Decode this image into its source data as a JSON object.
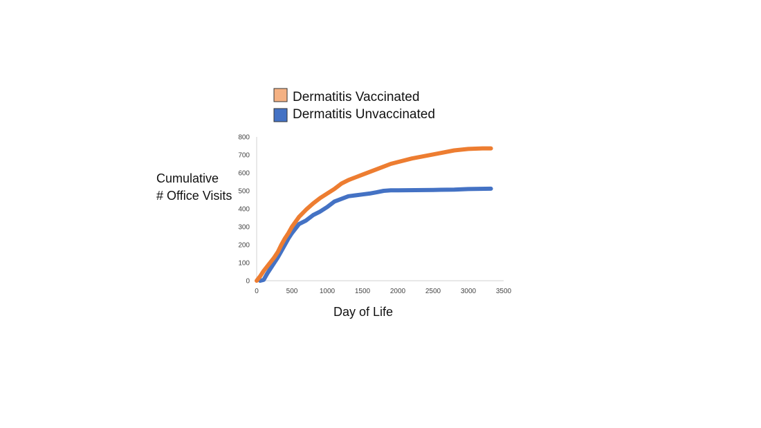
{
  "chart_data": {
    "type": "line",
    "xlabel": "Day of Life",
    "ylabel_lines": [
      "Cumulative",
      "# Office Visits"
    ],
    "xlim": [
      0,
      3500
    ],
    "ylim": [
      0,
      800
    ],
    "x_ticks": [
      0,
      500,
      1000,
      1500,
      2000,
      2500,
      3000,
      3500
    ],
    "y_ticks": [
      0,
      100,
      200,
      300,
      400,
      500,
      600,
      700,
      800
    ],
    "grid": false,
    "legend_position": "top",
    "series": [
      {
        "name": "Dermatitis Vaccinated",
        "color": "#ED7D31",
        "legend_color": "#F4B183",
        "points": [
          [
            0,
            0
          ],
          [
            50,
            25
          ],
          [
            100,
            55
          ],
          [
            150,
            80
          ],
          [
            200,
            105
          ],
          [
            250,
            130
          ],
          [
            300,
            160
          ],
          [
            350,
            200
          ],
          [
            400,
            235
          ],
          [
            450,
            265
          ],
          [
            500,
            300
          ],
          [
            600,
            355
          ],
          [
            700,
            395
          ],
          [
            800,
            430
          ],
          [
            900,
            460
          ],
          [
            1000,
            485
          ],
          [
            1100,
            510
          ],
          [
            1200,
            540
          ],
          [
            1300,
            560
          ],
          [
            1400,
            575
          ],
          [
            1500,
            590
          ],
          [
            1600,
            605
          ],
          [
            1700,
            620
          ],
          [
            1800,
            635
          ],
          [
            1900,
            650
          ],
          [
            2000,
            660
          ],
          [
            2200,
            680
          ],
          [
            2400,
            695
          ],
          [
            2600,
            710
          ],
          [
            2800,
            725
          ],
          [
            3000,
            733
          ],
          [
            3200,
            736
          ],
          [
            3320,
            736
          ]
        ]
      },
      {
        "name": "Dermatitis Unvaccinated",
        "color": "#4472C4",
        "legend_color": "#4472C4",
        "points": [
          [
            50,
            0
          ],
          [
            100,
            5
          ],
          [
            150,
            40
          ],
          [
            200,
            70
          ],
          [
            250,
            100
          ],
          [
            300,
            130
          ],
          [
            350,
            165
          ],
          [
            400,
            200
          ],
          [
            450,
            235
          ],
          [
            500,
            265
          ],
          [
            550,
            290
          ],
          [
            600,
            315
          ],
          [
            700,
            335
          ],
          [
            800,
            365
          ],
          [
            900,
            385
          ],
          [
            1000,
            410
          ],
          [
            1100,
            440
          ],
          [
            1200,
            455
          ],
          [
            1300,
            470
          ],
          [
            1400,
            475
          ],
          [
            1500,
            480
          ],
          [
            1600,
            485
          ],
          [
            1700,
            492
          ],
          [
            1800,
            500
          ],
          [
            1900,
            503
          ],
          [
            2000,
            503
          ],
          [
            2500,
            505
          ],
          [
            2800,
            507
          ],
          [
            3000,
            510
          ],
          [
            3320,
            512
          ]
        ]
      }
    ]
  }
}
